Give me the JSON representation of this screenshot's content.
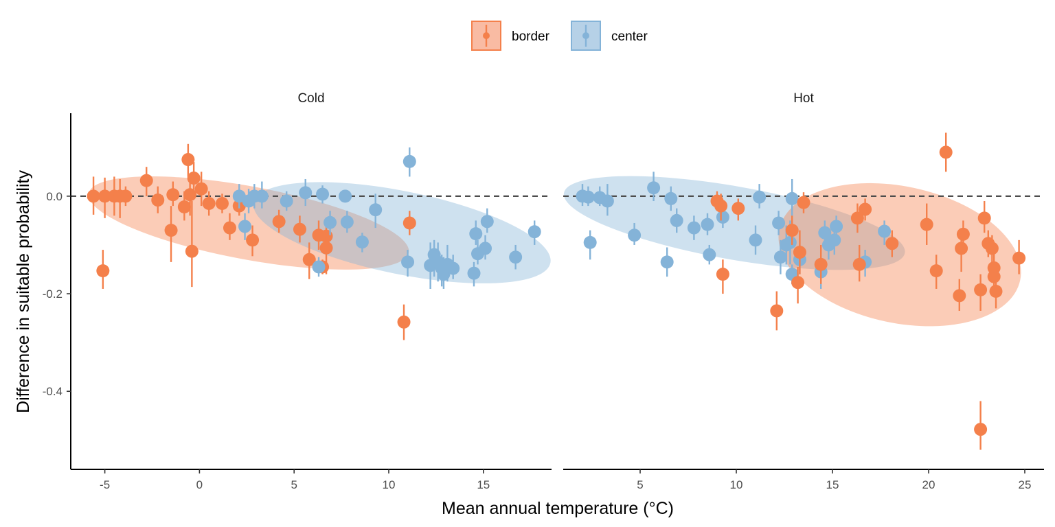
{
  "chart_data": {
    "type": "scatter",
    "xlabel": "Mean annual temperature (°C)",
    "ylabel": "Difference in suitable probability",
    "ylim": [
      -0.56,
      0.17
    ],
    "yticks": [
      0.0,
      -0.2,
      -0.4
    ],
    "ytick_labels": [
      "0.0",
      "-0.2",
      "-0.4"
    ],
    "reference_line_y": 0,
    "colors": {
      "border": "#F4804B",
      "center": "#84B3D8",
      "border_fill": "#F9BBA3",
      "center_fill": "#B6D1E7"
    },
    "legend": {
      "position": "top",
      "entries": [
        {
          "key": "border",
          "label": "border"
        },
        {
          "key": "center",
          "label": "center"
        }
      ]
    },
    "panels": [
      {
        "title": "Cold",
        "xlim": [
          -6.8,
          18.6
        ],
        "xticks": [
          -5,
          0,
          5,
          10,
          15
        ],
        "xtick_labels": [
          "-5",
          "0",
          "5",
          "10",
          "15"
        ],
        "ellipses": [
          {
            "series": "border",
            "cx": 2.6,
            "cy": -0.055,
            "rx": 8.6,
            "ry": 0.075,
            "angle_deg": -10.5
          },
          {
            "series": "center",
            "cx": 10.7,
            "cy": -0.075,
            "rx": 8.0,
            "ry": 0.085,
            "angle_deg": -11.5
          }
        ],
        "series": [
          {
            "name": "border",
            "points": [
              {
                "x": -5.6,
                "y": 0.0,
                "lo": -0.038,
                "hi": 0.04
              },
              {
                "x": -5.1,
                "y": -0.153,
                "lo": -0.19,
                "hi": -0.11
              },
              {
                "x": -5.0,
                "y": 0.0,
                "lo": -0.045,
                "hi": 0.038
              },
              {
                "x": -4.5,
                "y": 0.0,
                "lo": -0.04,
                "hi": 0.04
              },
              {
                "x": -4.2,
                "y": 0.0,
                "lo": -0.045,
                "hi": 0.035
              },
              {
                "x": -3.9,
                "y": 0.0,
                "lo": -0.02,
                "hi": 0.02
              },
              {
                "x": -2.8,
                "y": 0.032,
                "lo": 0.0,
                "hi": 0.06
              },
              {
                "x": -2.2,
                "y": -0.008,
                "lo": -0.035,
                "hi": 0.02
              },
              {
                "x": -1.5,
                "y": -0.07,
                "lo": -0.135,
                "hi": -0.02
              },
              {
                "x": -1.4,
                "y": 0.003,
                "lo": -0.02,
                "hi": 0.03
              },
              {
                "x": -0.8,
                "y": -0.022,
                "lo": -0.05,
                "hi": 0.01
              },
              {
                "x": -0.6,
                "y": 0.075,
                "lo": 0.04,
                "hi": 0.107
              },
              {
                "x": -0.5,
                "y": 0.003,
                "lo": -0.04,
                "hi": 0.04
              },
              {
                "x": -0.4,
                "y": -0.113,
                "lo": -0.186,
                "hi": -0.01
              },
              {
                "x": -0.3,
                "y": 0.037,
                "lo": 0.005,
                "hi": 0.07
              },
              {
                "x": 0.1,
                "y": 0.015,
                "lo": -0.02,
                "hi": 0.05
              },
              {
                "x": 0.5,
                "y": -0.015,
                "lo": -0.04,
                "hi": 0.01
              },
              {
                "x": 1.2,
                "y": -0.015,
                "lo": -0.035,
                "hi": 0.005
              },
              {
                "x": 1.6,
                "y": -0.065,
                "lo": -0.09,
                "hi": -0.035
              },
              {
                "x": 2.1,
                "y": -0.02,
                "lo": -0.04,
                "hi": 0.0
              },
              {
                "x": 2.8,
                "y": -0.09,
                "lo": -0.123,
                "hi": -0.06
              },
              {
                "x": 4.2,
                "y": -0.052,
                "lo": -0.075,
                "hi": -0.028
              },
              {
                "x": 5.3,
                "y": -0.068,
                "lo": -0.095,
                "hi": -0.04
              },
              {
                "x": 5.8,
                "y": -0.13,
                "lo": -0.17,
                "hi": -0.095
              },
              {
                "x": 6.3,
                "y": -0.08,
                "lo": -0.11,
                "hi": -0.05
              },
              {
                "x": 6.5,
                "y": -0.145,
                "lo": -0.16,
                "hi": -0.13
              },
              {
                "x": 6.7,
                "y": -0.082,
                "lo": -0.105,
                "hi": -0.06
              },
              {
                "x": 6.7,
                "y": -0.106,
                "lo": -0.16,
                "hi": -0.085
              },
              {
                "x": 10.8,
                "y": -0.258,
                "lo": -0.295,
                "hi": -0.222
              },
              {
                "x": 11.1,
                "y": -0.055,
                "lo": -0.08,
                "hi": -0.03
              }
            ]
          },
          {
            "name": "center",
            "points": [
              {
                "x": 2.1,
                "y": 0.0,
                "lo": -0.025,
                "hi": 0.025
              },
              {
                "x": 2.4,
                "y": -0.062,
                "lo": -0.09,
                "hi": -0.035
              },
              {
                "x": 2.6,
                "y": -0.01,
                "lo": -0.035,
                "hi": 0.015
              },
              {
                "x": 2.9,
                "y": 0.0,
                "lo": -0.025,
                "hi": 0.025
              },
              {
                "x": 3.3,
                "y": 0.0,
                "lo": -0.025,
                "hi": 0.03
              },
              {
                "x": 4.6,
                "y": -0.01,
                "lo": -0.03,
                "hi": 0.01
              },
              {
                "x": 5.6,
                "y": 0.007,
                "lo": -0.02,
                "hi": 0.035
              },
              {
                "x": 6.3,
                "y": -0.145,
                "lo": -0.165,
                "hi": -0.125
              },
              {
                "x": 6.5,
                "y": 0.004,
                "lo": -0.015,
                "hi": 0.022
              },
              {
                "x": 6.9,
                "y": -0.054,
                "lo": -0.08,
                "hi": -0.03
              },
              {
                "x": 7.7,
                "y": 0.0,
                "lo": -0.01,
                "hi": 0.01
              },
              {
                "x": 7.8,
                "y": -0.053,
                "lo": -0.075,
                "hi": -0.03
              },
              {
                "x": 8.6,
                "y": -0.094,
                "lo": -0.115,
                "hi": -0.075
              },
              {
                "x": 9.3,
                "y": -0.028,
                "lo": -0.065,
                "hi": 0.005
              },
              {
                "x": 11.0,
                "y": -0.135,
                "lo": -0.165,
                "hi": -0.11
              },
              {
                "x": 11.1,
                "y": 0.071,
                "lo": 0.04,
                "hi": 0.1
              },
              {
                "x": 12.2,
                "y": -0.142,
                "lo": -0.19,
                "hi": -0.095
              },
              {
                "x": 12.4,
                "y": -0.12,
                "lo": -0.165,
                "hi": -0.09
              },
              {
                "x": 12.6,
                "y": -0.135,
                "lo": -0.175,
                "hi": -0.095
              },
              {
                "x": 12.8,
                "y": -0.148,
                "lo": -0.185,
                "hi": -0.12
              },
              {
                "x": 12.9,
                "y": -0.16,
                "lo": -0.19,
                "hi": -0.125
              },
              {
                "x": 13.1,
                "y": -0.14,
                "lo": -0.175,
                "hi": -0.1
              },
              {
                "x": 13.4,
                "y": -0.148,
                "lo": -0.17,
                "hi": -0.12
              },
              {
                "x": 14.5,
                "y": -0.158,
                "lo": -0.185,
                "hi": -0.135
              },
              {
                "x": 14.6,
                "y": -0.077,
                "lo": -0.1,
                "hi": -0.05
              },
              {
                "x": 14.7,
                "y": -0.118,
                "lo": -0.14,
                "hi": -0.09
              },
              {
                "x": 15.1,
                "y": -0.107,
                "lo": -0.13,
                "hi": -0.08
              },
              {
                "x": 15.2,
                "y": -0.052,
                "lo": -0.075,
                "hi": -0.025
              },
              {
                "x": 16.7,
                "y": -0.125,
                "lo": -0.15,
                "hi": -0.1
              },
              {
                "x": 17.7,
                "y": -0.073,
                "lo": -0.1,
                "hi": -0.05
              }
            ]
          }
        ]
      },
      {
        "title": "Hot",
        "xlim": [
          1.0,
          26.0
        ],
        "xticks": [
          5,
          10,
          15,
          20,
          25
        ],
        "xtick_labels": [
          "5",
          "10",
          "15",
          "20",
          "25"
        ],
        "ellipses": [
          {
            "series": "center",
            "cx": 9.9,
            "cy": -0.055,
            "rx": 9.0,
            "ry": 0.075,
            "angle_deg": -10
          },
          {
            "series": "border",
            "cx": 18.5,
            "cy": -0.12,
            "rx": 6.4,
            "ry": 0.14,
            "angle_deg": -12
          }
        ],
        "series": [
          {
            "name": "center",
            "points": [
              {
                "x": 2.0,
                "y": 0.0,
                "lo": -0.02,
                "hi": 0.025
              },
              {
                "x": 2.3,
                "y": -0.002,
                "lo": -0.02,
                "hi": 0.02
              },
              {
                "x": 2.4,
                "y": -0.095,
                "lo": -0.13,
                "hi": -0.07
              },
              {
                "x": 2.9,
                "y": -0.003,
                "lo": -0.02,
                "hi": 0.02
              },
              {
                "x": 3.3,
                "y": -0.01,
                "lo": -0.04,
                "hi": 0.025
              },
              {
                "x": 4.7,
                "y": -0.08,
                "lo": -0.1,
                "hi": -0.055
              },
              {
                "x": 5.7,
                "y": 0.017,
                "lo": -0.01,
                "hi": 0.05
              },
              {
                "x": 6.4,
                "y": -0.135,
                "lo": -0.165,
                "hi": -0.105
              },
              {
                "x": 6.6,
                "y": -0.005,
                "lo": -0.03,
                "hi": 0.02
              },
              {
                "x": 6.9,
                "y": -0.05,
                "lo": -0.075,
                "hi": -0.025
              },
              {
                "x": 7.8,
                "y": -0.065,
                "lo": -0.09,
                "hi": -0.04
              },
              {
                "x": 8.5,
                "y": -0.058,
                "lo": -0.08,
                "hi": -0.035
              },
              {
                "x": 8.6,
                "y": -0.12,
                "lo": -0.14,
                "hi": -0.1
              },
              {
                "x": 9.3,
                "y": -0.043,
                "lo": -0.065,
                "hi": -0.02
              },
              {
                "x": 11.0,
                "y": -0.09,
                "lo": -0.12,
                "hi": -0.06
              },
              {
                "x": 11.2,
                "y": -0.002,
                "lo": -0.025,
                "hi": 0.025
              },
              {
                "x": 12.2,
                "y": -0.055,
                "lo": -0.08,
                "hi": -0.03
              },
              {
                "x": 12.3,
                "y": -0.125,
                "lo": -0.16,
                "hi": -0.09
              },
              {
                "x": 12.6,
                "y": -0.1,
                "lo": -0.14,
                "hi": -0.06
              },
              {
                "x": 12.8,
                "y": -0.095,
                "lo": -0.14,
                "hi": -0.05
              },
              {
                "x": 12.9,
                "y": -0.005,
                "lo": -0.04,
                "hi": 0.035
              },
              {
                "x": 12.9,
                "y": -0.16,
                "lo": -0.18,
                "hi": -0.14
              },
              {
                "x": 13.3,
                "y": -0.13,
                "lo": -0.16,
                "hi": -0.1
              },
              {
                "x": 14.4,
                "y": -0.155,
                "lo": -0.19,
                "hi": -0.125
              },
              {
                "x": 14.6,
                "y": -0.075,
                "lo": -0.1,
                "hi": -0.05
              },
              {
                "x": 14.8,
                "y": -0.1,
                "lo": -0.13,
                "hi": -0.07
              },
              {
                "x": 15.1,
                "y": -0.09,
                "lo": -0.12,
                "hi": -0.065
              },
              {
                "x": 15.2,
                "y": -0.062,
                "lo": -0.09,
                "hi": -0.04
              },
              {
                "x": 16.7,
                "y": -0.135,
                "lo": -0.165,
                "hi": -0.11
              },
              {
                "x": 17.7,
                "y": -0.072,
                "lo": -0.1,
                "hi": -0.05
              }
            ]
          },
          {
            "name": "border",
            "points": [
              {
                "x": 9.0,
                "y": -0.01,
                "lo": -0.03,
                "hi": 0.01
              },
              {
                "x": 9.2,
                "y": -0.02,
                "lo": -0.05,
                "hi": 0.005
              },
              {
                "x": 9.3,
                "y": -0.16,
                "lo": -0.2,
                "hi": -0.13
              },
              {
                "x": 10.1,
                "y": -0.025,
                "lo": -0.05,
                "hi": -0.005
              },
              {
                "x": 12.1,
                "y": -0.235,
                "lo": -0.275,
                "hi": -0.195
              },
              {
                "x": 12.9,
                "y": -0.07,
                "lo": -0.1,
                "hi": -0.04
              },
              {
                "x": 13.2,
                "y": -0.177,
                "lo": -0.22,
                "hi": -0.145
              },
              {
                "x": 13.3,
                "y": -0.115,
                "lo": -0.16,
                "hi": -0.07
              },
              {
                "x": 13.5,
                "y": -0.013,
                "lo": -0.035,
                "hi": 0.008
              },
              {
                "x": 14.4,
                "y": -0.14,
                "lo": -0.18,
                "hi": -0.1
              },
              {
                "x": 16.3,
                "y": -0.045,
                "lo": -0.075,
                "hi": -0.015
              },
              {
                "x": 16.4,
                "y": -0.14,
                "lo": -0.175,
                "hi": -0.1
              },
              {
                "x": 16.7,
                "y": -0.027,
                "lo": -0.05,
                "hi": -0.005
              },
              {
                "x": 18.1,
                "y": -0.097,
                "lo": -0.125,
                "hi": -0.07
              },
              {
                "x": 19.9,
                "y": -0.058,
                "lo": -0.1,
                "hi": -0.015
              },
              {
                "x": 20.4,
                "y": -0.153,
                "lo": -0.19,
                "hi": -0.12
              },
              {
                "x": 20.9,
                "y": 0.09,
                "lo": 0.05,
                "hi": 0.13
              },
              {
                "x": 21.6,
                "y": -0.204,
                "lo": -0.235,
                "hi": -0.17
              },
              {
                "x": 21.7,
                "y": -0.107,
                "lo": -0.155,
                "hi": -0.07
              },
              {
                "x": 21.8,
                "y": -0.078,
                "lo": -0.11,
                "hi": -0.05
              },
              {
                "x": 22.7,
                "y": -0.192,
                "lo": -0.235,
                "hi": -0.16
              },
              {
                "x": 22.7,
                "y": -0.478,
                "lo": -0.52,
                "hi": -0.42
              },
              {
                "x": 22.9,
                "y": -0.045,
                "lo": -0.075,
                "hi": -0.01
              },
              {
                "x": 23.1,
                "y": -0.097,
                "lo": -0.125,
                "hi": -0.07
              },
              {
                "x": 23.3,
                "y": -0.107,
                "lo": -0.14,
                "hi": -0.08
              },
              {
                "x": 23.4,
                "y": -0.147,
                "lo": -0.18,
                "hi": -0.115
              },
              {
                "x": 23.4,
                "y": -0.165,
                "lo": -0.2,
                "hi": -0.14
              },
              {
                "x": 23.5,
                "y": -0.195,
                "lo": -0.23,
                "hi": -0.16
              },
              {
                "x": 24.7,
                "y": -0.127,
                "lo": -0.16,
                "hi": -0.09
              }
            ]
          }
        ]
      }
    ]
  }
}
